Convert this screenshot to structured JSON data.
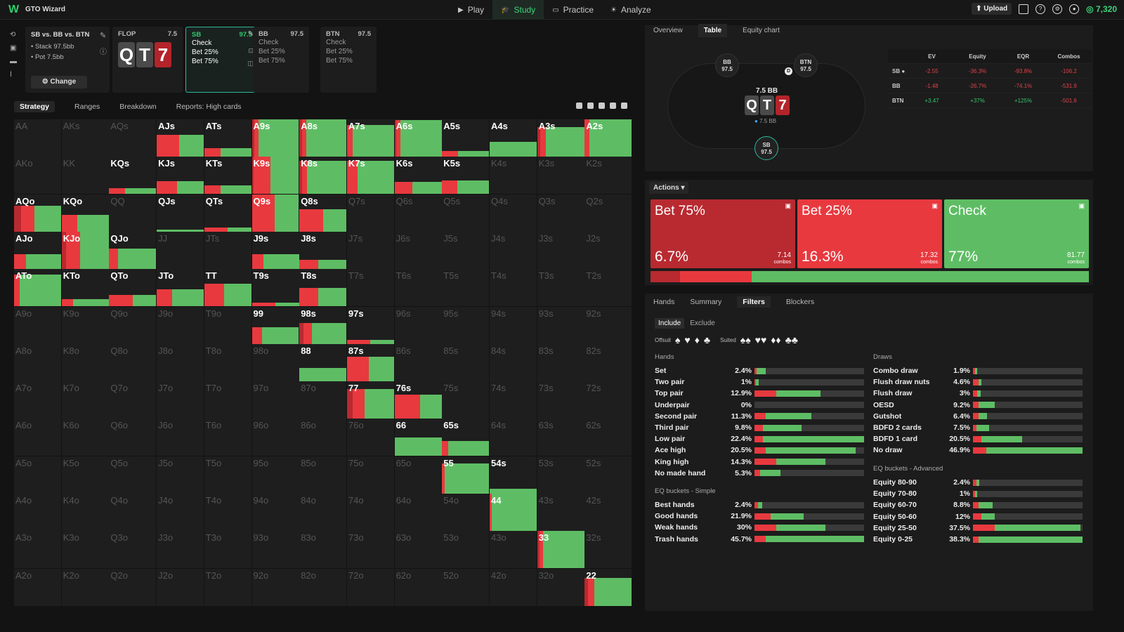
{
  "app": {
    "name": "GTO Wizard",
    "coins": "7,320",
    "upload_label": "Upload"
  },
  "nav": [
    {
      "label": "Play",
      "icon": "play-icon"
    },
    {
      "label": "Study",
      "icon": "study-icon",
      "active": true
    },
    {
      "label": "Practice",
      "icon": "practice-icon"
    },
    {
      "label": "Analyze",
      "icon": "analyze-icon"
    }
  ],
  "spot": {
    "title": "SB vs. BB vs. BTN",
    "stack": "Stack 97.5bb",
    "pot": "Pot 7.5bb",
    "change_label": "Change"
  },
  "flop": {
    "label": "FLOP",
    "value": "7.5",
    "cards": [
      "Q",
      "T",
      "7"
    ]
  },
  "players": [
    {
      "pos": "SB",
      "stack": "97.5",
      "actions": [
        "Check",
        "Bet 25%",
        "Bet 75%"
      ],
      "selected": true
    },
    {
      "pos": "BB",
      "stack": "97.5",
      "actions": [
        "Check",
        "Bet 25%",
        "Bet 75%"
      ]
    },
    {
      "pos": "BTN",
      "stack": "97.5",
      "actions": [
        "Check",
        "Bet 25%",
        "Bet 75%"
      ]
    }
  ],
  "strategy_tabs": [
    "Strategy",
    "Ranges",
    "Breakdown",
    "Reports: High cards"
  ],
  "colors": {
    "green": "#5ebd64",
    "red": "#e8393f",
    "darkred": "#b82a30"
  },
  "matrix": [
    [
      [
        "AA",
        0,
        0,
        0,
        1
      ],
      [
        "AKs",
        0,
        0,
        0,
        1
      ],
      [
        "AQs",
        0,
        0,
        0,
        1
      ],
      [
        "AJs",
        0,
        0.28,
        0.3
      ],
      [
        "ATs",
        0,
        0.08,
        0.15
      ],
      [
        "A9s",
        0.05,
        0.1,
        0.9
      ],
      [
        "A8s",
        0.05,
        0.1,
        0.85
      ],
      [
        "A7s",
        0,
        0.1,
        0.75
      ],
      [
        "A6s",
        0.03,
        0.1,
        0.85
      ],
      [
        "A5s",
        0,
        0.05,
        0.1
      ],
      [
        "A4s",
        0,
        0,
        0.4
      ],
      [
        "A3s",
        0.05,
        0.1,
        0.65
      ],
      [
        "A2s",
        0,
        0.1,
        0.9
      ]
    ],
    [
      [
        "AKo",
        0,
        0,
        0,
        1
      ],
      [
        "KK",
        0,
        0,
        0,
        1
      ],
      [
        "KQs",
        0,
        0.05,
        0.1
      ],
      [
        "KJs",
        0,
        0.15,
        0.2
      ],
      [
        "KTs",
        0,
        0.08,
        0.15
      ],
      [
        "K9s",
        0.05,
        0.4,
        0.7
      ],
      [
        "K8s",
        0.05,
        0.1,
        0.75
      ],
      [
        "K7s",
        0,
        0.2,
        0.7
      ],
      [
        "K6s",
        0,
        0.12,
        0.2
      ],
      [
        "K5s",
        0,
        0.12,
        0.25
      ],
      [
        "K4s",
        0,
        0,
        0,
        1
      ],
      [
        "K3s",
        0,
        0,
        0,
        1
      ],
      [
        "K2s",
        0,
        0,
        0,
        1
      ]
    ],
    [
      [
        "AQo",
        0.1,
        0.2,
        0.4
      ],
      [
        "KQo",
        0,
        0.15,
        0.3
      ],
      [
        "QQ",
        0,
        0,
        0,
        1
      ],
      [
        "QJs",
        0,
        0,
        0.05
      ],
      [
        "QTs",
        0,
        0.05,
        0.05
      ],
      [
        "Q9s",
        0,
        0.75,
        0.8
      ],
      [
        "Q8s",
        0,
        0.3,
        0.3
      ],
      [
        "Q7s",
        0,
        0,
        0,
        1
      ],
      [
        "Q6s",
        0,
        0,
        0,
        1
      ],
      [
        "Q5s",
        0,
        0,
        0,
        1
      ],
      [
        "Q4s",
        0,
        0,
        0,
        1
      ],
      [
        "Q3s",
        0,
        0,
        0,
        1
      ],
      [
        "Q2s",
        0,
        0,
        0,
        1
      ]
    ],
    [
      [
        "AJo",
        0,
        0.1,
        0.3
      ],
      [
        "KJo",
        0.1,
        0.3,
        0.6
      ],
      [
        "QJo",
        0,
        0.1,
        0.45
      ],
      [
        "JJ",
        0,
        0,
        0,
        1
      ],
      [
        "JTs",
        0,
        0,
        0,
        1
      ],
      [
        "J9s",
        0,
        0.1,
        0.3
      ],
      [
        "J8s",
        0,
        0.1,
        0.15
      ],
      [
        "J7s",
        0,
        0,
        0,
        1
      ],
      [
        "J6s",
        0,
        0,
        0,
        1
      ],
      [
        "J5s",
        0,
        0,
        0,
        1
      ],
      [
        "J4s",
        0,
        0,
        0,
        1
      ],
      [
        "J3s",
        0,
        0,
        0,
        1
      ],
      [
        "J2s",
        0,
        0,
        0,
        1
      ]
    ],
    [
      [
        "ATo",
        0,
        0.1,
        0.75
      ],
      [
        "KTo",
        0,
        0.05,
        0.15
      ],
      [
        "QTo",
        0,
        0.15,
        0.15
      ],
      [
        "JTo",
        0,
        0.15,
        0.3
      ],
      [
        "TT",
        0,
        0.25,
        0.35
      ],
      [
        "T9s",
        0,
        0.05,
        0.05
      ],
      [
        "T8s",
        0,
        0.2,
        0.3
      ],
      [
        "T7s",
        0,
        0,
        0,
        1
      ],
      [
        "T6s",
        0,
        0,
        0,
        1
      ],
      [
        "T5s",
        0,
        0,
        0,
        1
      ],
      [
        "T4s",
        0,
        0,
        0,
        1
      ],
      [
        "T3s",
        0,
        0,
        0,
        1
      ],
      [
        "T2s",
        0,
        0,
        0,
        1
      ]
    ],
    [
      [
        "A9o",
        0,
        0,
        0,
        1
      ],
      [
        "K9o",
        0,
        0,
        0,
        1
      ],
      [
        "Q9o",
        0,
        0,
        0,
        1
      ],
      [
        "J9o",
        0,
        0,
        0,
        1
      ],
      [
        "T9o",
        0,
        0,
        0,
        1
      ],
      [
        "99",
        0,
        0.1,
        0.35
      ],
      [
        "98s",
        0.05,
        0.1,
        0.4
      ],
      [
        "97s",
        0,
        0.05,
        0.05
      ],
      [
        "96s",
        0,
        0,
        0,
        1
      ],
      [
        "95s",
        0,
        0,
        0,
        1
      ],
      [
        "94s",
        0,
        0,
        0,
        1
      ],
      [
        "93s",
        0,
        0,
        0,
        1
      ],
      [
        "92s",
        0,
        0,
        0,
        1
      ]
    ],
    [
      [
        "A8o",
        0,
        0,
        0,
        1
      ],
      [
        "K8o",
        0,
        0,
        0,
        1
      ],
      [
        "Q8o",
        0,
        0,
        0,
        1
      ],
      [
        "J8o",
        0,
        0,
        0,
        1
      ],
      [
        "T8o",
        0,
        0,
        0,
        1
      ],
      [
        "98o",
        0,
        0,
        0,
        1
      ],
      [
        "88",
        0,
        0,
        0.35
      ],
      [
        "87s",
        0,
        0.3,
        0.35
      ],
      [
        "86s",
        0,
        0,
        0,
        1
      ],
      [
        "85s",
        0,
        0,
        0,
        1
      ],
      [
        "84s",
        0,
        0,
        0,
        1
      ],
      [
        "83s",
        0,
        0,
        0,
        1
      ],
      [
        "82s",
        0,
        0,
        0,
        1
      ]
    ],
    [
      [
        "A7o",
        0,
        0,
        0,
        1
      ],
      [
        "K7o",
        0,
        0,
        0,
        1
      ],
      [
        "Q7o",
        0,
        0,
        0,
        1
      ],
      [
        "J7o",
        0,
        0,
        0,
        1
      ],
      [
        "T7o",
        0,
        0,
        0,
        1
      ],
      [
        "97o",
        0,
        0,
        0,
        1
      ],
      [
        "87o",
        0,
        0,
        0,
        1
      ],
      [
        "77",
        0.1,
        0.2,
        0.5
      ],
      [
        "76s",
        0,
        0.35,
        0.3
      ],
      [
        "75s",
        0,
        0,
        0,
        1
      ],
      [
        "74s",
        0,
        0,
        0,
        1
      ],
      [
        "73s",
        0,
        0,
        0,
        1
      ],
      [
        "72s",
        0,
        0,
        0,
        1
      ]
    ],
    [
      [
        "A6o",
        0,
        0,
        0,
        1
      ],
      [
        "K6o",
        0,
        0,
        0,
        1
      ],
      [
        "Q6o",
        0,
        0,
        0,
        1
      ],
      [
        "J6o",
        0,
        0,
        0,
        1
      ],
      [
        "T6o",
        0,
        0,
        0,
        1
      ],
      [
        "96o",
        0,
        0,
        0,
        1
      ],
      [
        "86o",
        0,
        0,
        0,
        1
      ],
      [
        "76o",
        0,
        0,
        0,
        1
      ],
      [
        "66",
        0,
        0,
        0.5
      ],
      [
        "65s",
        0,
        0.05,
        0.35
      ],
      [
        "64s",
        0,
        0,
        0,
        1
      ],
      [
        "63s",
        0,
        0,
        0,
        1
      ],
      [
        "62s",
        0,
        0,
        0,
        1
      ]
    ],
    [
      [
        "A5o",
        0,
        0,
        0,
        1
      ],
      [
        "K5o",
        0,
        0,
        0,
        1
      ],
      [
        "Q5o",
        0,
        0,
        0,
        1
      ],
      [
        "J5o",
        0,
        0,
        0,
        1
      ],
      [
        "T5o",
        0,
        0,
        0,
        1
      ],
      [
        "95o",
        0,
        0,
        0,
        1
      ],
      [
        "85o",
        0,
        0,
        0,
        1
      ],
      [
        "75o",
        0,
        0,
        0,
        1
      ],
      [
        "65o",
        0,
        0,
        0,
        1
      ],
      [
        "55",
        0,
        0.05,
        0.75
      ],
      [
        "54s",
        0,
        0,
        0.12
      ],
      [
        "53s",
        0,
        0,
        0,
        1
      ],
      [
        "52s",
        0,
        0,
        0,
        1
      ]
    ],
    [
      [
        "A4o",
        0,
        0,
        0,
        1
      ],
      [
        "K4o",
        0,
        0,
        0,
        1
      ],
      [
        "Q4o",
        0,
        0,
        0,
        1
      ],
      [
        "J4o",
        0,
        0,
        0,
        1
      ],
      [
        "T4o",
        0,
        0,
        0,
        1
      ],
      [
        "94o",
        0,
        0,
        0,
        1
      ],
      [
        "84o",
        0,
        0,
        0,
        1
      ],
      [
        "74o",
        0,
        0,
        0,
        1
      ],
      [
        "64o",
        0,
        0,
        0,
        1
      ],
      [
        "54o",
        0,
        0,
        0,
        1
      ],
      [
        "44",
        0,
        0.05,
        1
      ],
      [
        "43s",
        0,
        0,
        0,
        1
      ],
      [
        "42s",
        0,
        0,
        0,
        1
      ]
    ],
    [
      [
        "A3o",
        0,
        0,
        0,
        1
      ],
      [
        "K3o",
        0,
        0,
        0,
        1
      ],
      [
        "Q3o",
        0,
        0,
        0,
        1
      ],
      [
        "J3o",
        0,
        0,
        0,
        1
      ],
      [
        "T3o",
        0,
        0,
        0,
        1
      ],
      [
        "93o",
        0,
        0,
        0,
        1
      ],
      [
        "83o",
        0,
        0,
        0,
        1
      ],
      [
        "73o",
        0,
        0,
        0,
        1
      ],
      [
        "63o",
        0,
        0,
        0,
        1
      ],
      [
        "53o",
        0,
        0,
        0,
        1
      ],
      [
        "43o",
        0,
        0,
        0,
        1
      ],
      [
        "33",
        0.05,
        0.1,
        1
      ],
      [
        "32s",
        0,
        0,
        0,
        1
      ]
    ],
    [
      [
        "A2o",
        0,
        0,
        0,
        1
      ],
      [
        "K2o",
        0,
        0,
        0,
        1
      ],
      [
        "Q2o",
        0,
        0,
        0,
        1
      ],
      [
        "J2o",
        0,
        0,
        0,
        1
      ],
      [
        "T2o",
        0,
        0,
        0,
        1
      ],
      [
        "92o",
        0,
        0,
        0,
        1
      ],
      [
        "82o",
        0,
        0,
        0,
        1
      ],
      [
        "72o",
        0,
        0,
        0,
        1
      ],
      [
        "62o",
        0,
        0,
        0,
        1
      ],
      [
        "52o",
        0,
        0,
        0,
        1
      ],
      [
        "42o",
        0,
        0,
        0,
        1
      ],
      [
        "32o",
        0,
        0,
        0,
        1
      ],
      [
        "22",
        0.05,
        0.1,
        0.6
      ]
    ]
  ],
  "right_tabs": [
    "Overview",
    "Table",
    "Equity chart"
  ],
  "table_view": {
    "pot": "7.5 BB",
    "pot_chip": "7.5 BB",
    "dealer": "D",
    "seats": [
      {
        "pos": "BB",
        "stack": "97.5"
      },
      {
        "pos": "BTN",
        "stack": "97.5"
      },
      {
        "pos": "SB",
        "stack": "97.5"
      }
    ]
  },
  "ev_table": {
    "headers": [
      "",
      "EV",
      "Equity",
      "EQR",
      "Combos"
    ],
    "rows": [
      [
        "SB ●",
        "-2.55",
        "-36.3%",
        "-93.8%",
        "-106.2"
      ],
      [
        "BB",
        "-1.48",
        "-26.7%",
        "-74.1%",
        "-531.9"
      ],
      [
        "BTN",
        "+3.47",
        "+37%",
        "+125%",
        "-501.6"
      ]
    ]
  },
  "actions": {
    "header": "Actions",
    "items": [
      {
        "name": "Bet 75%",
        "pct": "6.7%",
        "combos": "7.14",
        "combos_label": "combos",
        "color": "#b82a30"
      },
      {
        "name": "Bet 25%",
        "pct": "16.3%",
        "combos": "17.32",
        "combos_label": "combos",
        "color": "#e8393f"
      },
      {
        "name": "Check",
        "pct": "77%",
        "combos": "81.77",
        "combos_label": "combos",
        "color": "#5ebd64"
      }
    ],
    "stack": [
      0.067,
      0.163,
      0.77
    ]
  },
  "lower_tabs": [
    "Hands",
    "Summary",
    "Filters",
    "Blockers"
  ],
  "filters": {
    "include": "Include",
    "exclude": "Exclude",
    "offsuit": "Offsuit",
    "suited": "Suited",
    "hands_title": "Hands",
    "hands": [
      [
        "Set",
        "2.4%",
        0.02,
        0.08
      ],
      [
        "Two pair",
        "1%",
        0.01,
        0.03
      ],
      [
        "Top pair",
        "12.9%",
        0.2,
        0.4
      ],
      [
        "Underpair",
        "0%",
        0,
        0
      ],
      [
        "Second pair",
        "11.3%",
        0.1,
        0.42
      ],
      [
        "Third pair",
        "9.8%",
        0.08,
        0.35
      ],
      [
        "Low pair",
        "22.4%",
        0.08,
        0.92
      ],
      [
        "Ace high",
        "20.5%",
        0.1,
        0.82
      ],
      [
        "King high",
        "14.3%",
        0.2,
        0.45
      ],
      [
        "No made hand",
        "5.3%",
        0.05,
        0.19
      ]
    ],
    "eqs_title": "EQ buckets - Simple",
    "eqs": [
      [
        "Best hands",
        "2.4%",
        0.03,
        0.04
      ],
      [
        "Good hands",
        "21.9%",
        0.15,
        0.3
      ],
      [
        "Weak hands",
        "30%",
        0.2,
        0.45
      ],
      [
        "Trash hands",
        "45.7%",
        0.1,
        0.9
      ]
    ],
    "draws_title": "Draws",
    "draws": [
      [
        "Combo draw",
        "1.9%",
        0.02,
        0.02
      ],
      [
        "Flush draw nuts",
        "4.6%",
        0.05,
        0.03
      ],
      [
        "Flush draw",
        "3%",
        0.04,
        0.03
      ],
      [
        "OESD",
        "9.2%",
        0.05,
        0.15
      ],
      [
        "Gutshot",
        "6.4%",
        0.05,
        0.08
      ],
      [
        "BDFD 2 cards",
        "7.5%",
        0.03,
        0.12
      ],
      [
        "BDFD 1 card",
        "20.5%",
        0.08,
        0.37
      ],
      [
        "No draw",
        "46.9%",
        0.12,
        0.88
      ]
    ],
    "eqa_title": "EQ buckets - Advanced",
    "eqa": [
      [
        "Equity 80-90",
        "2.4%",
        0.03,
        0.03
      ],
      [
        "Equity 70-80",
        "1%",
        0.02,
        0.02
      ],
      [
        "Equity 60-70",
        "8.8%",
        0.05,
        0.13
      ],
      [
        "Equity 50-60",
        "12%",
        0.08,
        0.12
      ],
      [
        "Equity 25-50",
        "37.5%",
        0.2,
        0.78
      ],
      [
        "Equity 0-25",
        "38.3%",
        0.05,
        0.95
      ]
    ]
  }
}
